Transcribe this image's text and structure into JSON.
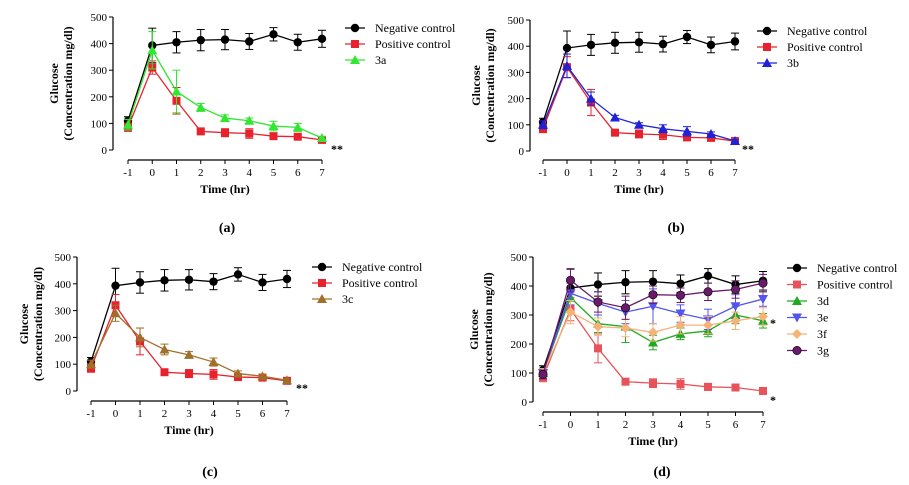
{
  "figure": {
    "panel_labels": [
      "(a)",
      "(b)",
      "(c)",
      "(d)"
    ]
  },
  "chart_data": [
    {
      "panel": "(a)",
      "type": "line",
      "xlabel": "Time (hr)",
      "ylabel": "Glucose (Concentration mg/dl)",
      "x": [
        -1,
        0,
        1,
        2,
        3,
        4,
        5,
        6,
        7
      ],
      "xlim": [
        -1,
        7
      ],
      "ylim": [
        0,
        500
      ],
      "yticks": [
        0,
        100,
        200,
        300,
        400,
        500
      ],
      "legend_position": "top-right",
      "annotation": "**",
      "series": [
        {
          "name": "Negative control",
          "color": "#000000",
          "marker": "circle",
          "values": [
            110,
            393,
            405,
            413,
            415,
            408,
            435,
            405,
            418
          ],
          "errors": [
            15,
            65,
            40,
            40,
            38,
            30,
            25,
            30,
            32
          ]
        },
        {
          "name": "Positive control",
          "color": "#e8222c",
          "marker": "square",
          "values": [
            85,
            310,
            185,
            70,
            65,
            62,
            52,
            50,
            38
          ],
          "errors": [
            15,
            25,
            50,
            8,
            15,
            18,
            12,
            8,
            5
          ]
        },
        {
          "name": "3a",
          "color": "#33e633",
          "marker": "triangle-up",
          "values": [
            95,
            375,
            220,
            160,
            120,
            110,
            90,
            85,
            45
          ],
          "errors": [
            20,
            70,
            80,
            15,
            12,
            10,
            18,
            15,
            5
          ]
        }
      ]
    },
    {
      "panel": "(b)",
      "type": "line",
      "xlabel": "Time (hr)",
      "ylabel": "Glucose (Concentration mg/dl)",
      "x": [
        -1,
        0,
        1,
        2,
        3,
        4,
        5,
        6,
        7
      ],
      "xlim": [
        -1,
        7
      ],
      "ylim": [
        0,
        500
      ],
      "yticks": [
        0,
        100,
        200,
        300,
        400,
        500
      ],
      "legend_position": "top-right",
      "annotation": "**",
      "series": [
        {
          "name": "Negative control",
          "color": "#000000",
          "marker": "circle",
          "values": [
            110,
            393,
            405,
            413,
            415,
            408,
            435,
            405,
            418
          ],
          "errors": [
            15,
            65,
            40,
            40,
            38,
            30,
            25,
            30,
            32
          ]
        },
        {
          "name": "Positive control",
          "color": "#e8222c",
          "marker": "square",
          "values": [
            85,
            320,
            185,
            70,
            65,
            62,
            52,
            50,
            38
          ],
          "errors": [
            15,
            40,
            50,
            8,
            15,
            18,
            12,
            8,
            5
          ]
        },
        {
          "name": "3b",
          "color": "#1f22d6",
          "marker": "triangle-up",
          "values": [
            100,
            325,
            200,
            128,
            100,
            85,
            75,
            65,
            38
          ],
          "errors": [
            15,
            45,
            25,
            8,
            8,
            15,
            18,
            8,
            5
          ]
        }
      ]
    },
    {
      "panel": "(c)",
      "type": "line",
      "xlabel": "Time (hr)",
      "ylabel": "Glucose (Concentration mg/dl)",
      "x": [
        -1,
        0,
        1,
        2,
        3,
        4,
        5,
        6,
        7
      ],
      "xlim": [
        -1,
        7
      ],
      "ylim": [
        0,
        500
      ],
      "yticks": [
        0,
        100,
        200,
        300,
        400,
        500
      ],
      "legend_position": "top-right",
      "annotation": "**",
      "series": [
        {
          "name": "Negative control",
          "color": "#000000",
          "marker": "circle",
          "values": [
            110,
            393,
            405,
            413,
            415,
            408,
            435,
            405,
            418
          ],
          "errors": [
            15,
            65,
            40,
            40,
            38,
            30,
            25,
            30,
            32
          ]
        },
        {
          "name": "Positive control",
          "color": "#e8222c",
          "marker": "square",
          "values": [
            85,
            320,
            185,
            70,
            65,
            62,
            52,
            50,
            38
          ],
          "errors": [
            15,
            40,
            50,
            8,
            15,
            18,
            12,
            8,
            5
          ]
        },
        {
          "name": "3c",
          "color": "#a0702a",
          "marker": "triangle-up",
          "values": [
            100,
            290,
            200,
            155,
            135,
            108,
            65,
            55,
            40
          ],
          "errors": [
            15,
            30,
            35,
            20,
            12,
            15,
            10,
            8,
            5
          ]
        }
      ]
    },
    {
      "panel": "(d)",
      "type": "line",
      "xlabel": "Time (hr)",
      "ylabel": "Glucose (Concentration mg/dl)",
      "x": [
        -1,
        0,
        1,
        2,
        3,
        4,
        5,
        6,
        7
      ],
      "xlim": [
        -1,
        7
      ],
      "ylim": [
        0,
        500
      ],
      "yticks": [
        0,
        100,
        200,
        300,
        400,
        500
      ],
      "legend_position": "top-right",
      "annotations": [
        "*",
        "*"
      ],
      "series": [
        {
          "name": "Negative control",
          "color": "#000000",
          "marker": "circle",
          "values": [
            110,
            393,
            405,
            413,
            415,
            408,
            435,
            405,
            418
          ],
          "errors": [
            15,
            65,
            40,
            40,
            38,
            30,
            25,
            30,
            32
          ]
        },
        {
          "name": "Positive control",
          "color": "#e8535b",
          "marker": "square",
          "values": [
            85,
            320,
            185,
            70,
            65,
            62,
            52,
            50,
            38
          ],
          "errors": [
            15,
            40,
            50,
            8,
            15,
            18,
            12,
            8,
            5
          ]
        },
        {
          "name": "3d",
          "color": "#1faa1f",
          "marker": "triangle-up",
          "values": [
            100,
            360,
            270,
            260,
            205,
            235,
            245,
            300,
            280
          ],
          "errors": [
            15,
            50,
            30,
            55,
            25,
            20,
            20,
            30,
            25
          ]
        },
        {
          "name": "3e",
          "color": "#5555ee",
          "marker": "triangle-down",
          "values": [
            100,
            375,
            340,
            310,
            330,
            305,
            285,
            330,
            355
          ],
          "errors": [
            15,
            40,
            40,
            40,
            60,
            30,
            35,
            40,
            25
          ]
        },
        {
          "name": "3f",
          "color": "#f5b37a",
          "marker": "diamond",
          "values": [
            100,
            310,
            260,
            255,
            240,
            265,
            265,
            280,
            295
          ],
          "errors": [
            15,
            40,
            30,
            30,
            30,
            30,
            30,
            30,
            30
          ]
        },
        {
          "name": "3g",
          "color": "#6a1a6a",
          "marker": "circle",
          "values": [
            95,
            420,
            345,
            325,
            370,
            368,
            380,
            388,
            410
          ],
          "errors": [
            15,
            40,
            35,
            40,
            30,
            25,
            30,
            30,
            30
          ]
        }
      ]
    }
  ]
}
